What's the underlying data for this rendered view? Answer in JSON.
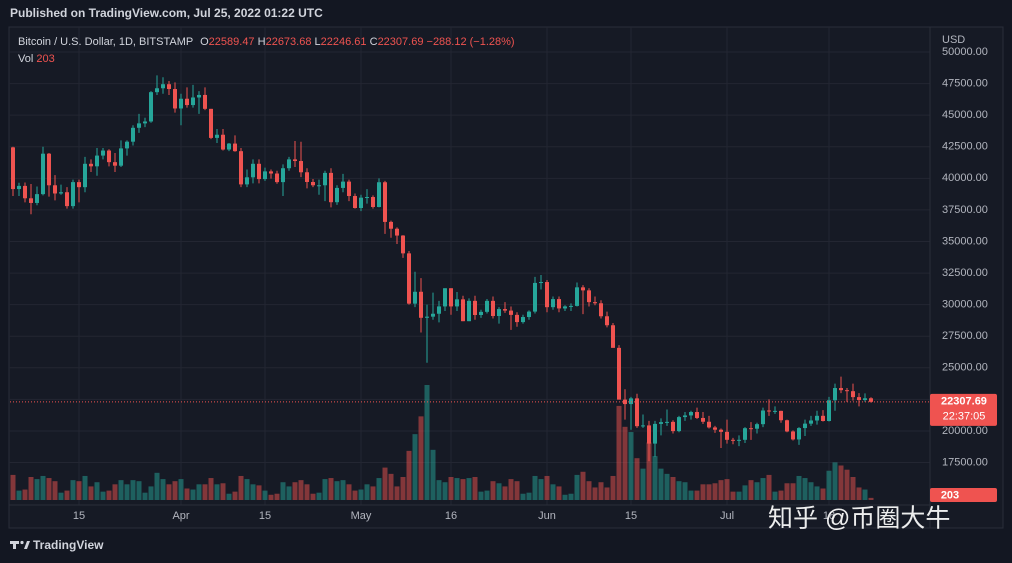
{
  "header": {
    "published": "Published on TradingView.com, Jul 25, 2022 01:22 UTC",
    "brand": "TradingView",
    "watermark": "知乎 @币圈大牛"
  },
  "chart_data": {
    "type": "candlestick",
    "symbol": "Bitcoin / U.S. Dollar, 1D, BITSTAMP",
    "legend_labels": [
      "O",
      "H",
      "L",
      "C"
    ],
    "change": "−288.12 (−1.28%)",
    "volume_label": "Vol",
    "currency": "USD",
    "countdown": "22:37:05",
    "up_color": "#26a69a",
    "down_color": "#ef5350",
    "grid": true,
    "x": [
      "2022-03-04",
      "2022-03-05",
      "2022-03-06",
      "2022-03-07",
      "2022-03-08",
      "2022-03-09",
      "2022-03-10",
      "2022-03-11",
      "2022-03-12",
      "2022-03-13",
      "2022-03-14",
      "2022-03-15",
      "2022-03-16",
      "2022-03-17",
      "2022-03-18",
      "2022-03-19",
      "2022-03-20",
      "2022-03-21",
      "2022-03-22",
      "2022-03-23",
      "2022-03-24",
      "2022-03-25",
      "2022-03-26",
      "2022-03-27",
      "2022-03-28",
      "2022-03-29",
      "2022-03-30",
      "2022-03-31",
      "2022-04-01",
      "2022-04-02",
      "2022-04-03",
      "2022-04-04",
      "2022-04-05",
      "2022-04-06",
      "2022-04-07",
      "2022-04-08",
      "2022-04-09",
      "2022-04-10",
      "2022-04-11",
      "2022-04-12",
      "2022-04-13",
      "2022-04-14",
      "2022-04-15",
      "2022-04-16",
      "2022-04-17",
      "2022-04-18",
      "2022-04-19",
      "2022-04-20",
      "2022-04-21",
      "2022-04-22",
      "2022-04-23",
      "2022-04-24",
      "2022-04-25",
      "2022-04-26",
      "2022-04-27",
      "2022-04-28",
      "2022-04-29",
      "2022-04-30",
      "2022-05-01",
      "2022-05-02",
      "2022-05-03",
      "2022-05-04",
      "2022-05-05",
      "2022-05-06",
      "2022-05-07",
      "2022-05-08",
      "2022-05-09",
      "2022-05-10",
      "2022-05-11",
      "2022-05-12",
      "2022-05-13",
      "2022-05-14",
      "2022-05-15",
      "2022-05-16",
      "2022-05-17",
      "2022-05-18",
      "2022-05-19",
      "2022-05-20",
      "2022-05-21",
      "2022-05-22",
      "2022-05-23",
      "2022-05-24",
      "2022-05-25",
      "2022-05-26",
      "2022-05-27",
      "2022-05-28",
      "2022-05-29",
      "2022-05-30",
      "2022-05-31",
      "2022-06-01",
      "2022-06-02",
      "2022-06-03",
      "2022-06-04",
      "2022-06-05",
      "2022-06-06",
      "2022-06-07",
      "2022-06-08",
      "2022-06-09",
      "2022-06-10",
      "2022-06-11",
      "2022-06-12",
      "2022-06-13",
      "2022-06-14",
      "2022-06-15",
      "2022-06-16",
      "2022-06-17",
      "2022-06-18",
      "2022-06-19",
      "2022-06-20",
      "2022-06-21",
      "2022-06-22",
      "2022-06-23",
      "2022-06-24",
      "2022-06-25",
      "2022-06-26",
      "2022-06-27",
      "2022-06-28",
      "2022-06-29",
      "2022-06-30",
      "2022-07-01",
      "2022-07-02",
      "2022-07-03",
      "2022-07-04",
      "2022-07-05",
      "2022-07-06",
      "2022-07-07",
      "2022-07-08",
      "2022-07-09",
      "2022-07-10",
      "2022-07-11",
      "2022-07-12",
      "2022-07-13",
      "2022-07-14",
      "2022-07-15",
      "2022-07-16",
      "2022-07-17",
      "2022-07-18",
      "2022-07-19",
      "2022-07-20",
      "2022-07-21",
      "2022-07-22",
      "2022-07-23",
      "2022-07-24",
      "2022-07-25"
    ],
    "candles": [
      [
        42450,
        42500,
        38600,
        39150
      ],
      [
        39150,
        39650,
        38600,
        39400
      ],
      [
        39400,
        39670,
        38100,
        38420
      ],
      [
        38420,
        39550,
        37160,
        38050
      ],
      [
        38050,
        39350,
        37870,
        38750
      ],
      [
        38750,
        42500,
        38650,
        41950
      ],
      [
        41950,
        42000,
        38550,
        39450
      ],
      [
        39450,
        40250,
        38250,
        38800
      ],
      [
        38800,
        39500,
        38700,
        38900
      ],
      [
        38900,
        39300,
        37600,
        37800
      ],
      [
        37800,
        39900,
        37600,
        39700
      ],
      [
        39700,
        39900,
        38100,
        39300
      ],
      [
        39300,
        41700,
        38900,
        41150
      ],
      [
        41150,
        41500,
        40500,
        40950
      ],
      [
        40950,
        42400,
        40200,
        41800
      ],
      [
        41800,
        42400,
        41500,
        42200
      ],
      [
        42200,
        42300,
        40950,
        41280
      ],
      [
        41280,
        42000,
        40500,
        41000
      ],
      [
        41000,
        43000,
        40900,
        42370
      ],
      [
        42370,
        43000,
        41800,
        42900
      ],
      [
        42900,
        44200,
        42600,
        44000
      ],
      [
        44000,
        45100,
        43600,
        44350
      ],
      [
        44350,
        44800,
        44050,
        44500
      ],
      [
        44500,
        46900,
        44400,
        46820
      ],
      [
        46820,
        48150,
        46600,
        47130
      ],
      [
        47130,
        48000,
        46700,
        47450
      ],
      [
        47450,
        47700,
        46600,
        47070
      ],
      [
        47070,
        47600,
        45200,
        45530
      ],
      [
        45530,
        46700,
        44200,
        46300
      ],
      [
        46300,
        47200,
        45600,
        45800
      ],
      [
        45800,
        47400,
        45600,
        46400
      ],
      [
        46400,
        46900,
        45100,
        46600
      ],
      [
        46600,
        47200,
        45400,
        45500
      ],
      [
        45500,
        45500,
        43100,
        43200
      ],
      [
        43200,
        43900,
        42800,
        43450
      ],
      [
        43450,
        43900,
        42200,
        42280
      ],
      [
        42280,
        42800,
        42150,
        42750
      ],
      [
        42750,
        43400,
        42100,
        42150
      ],
      [
        42150,
        42400,
        39300,
        39520
      ],
      [
        39520,
        40700,
        39300,
        40080
      ],
      [
        40080,
        41500,
        39600,
        41150
      ],
      [
        41150,
        41500,
        39600,
        39940
      ],
      [
        39940,
        40850,
        39800,
        40550
      ],
      [
        40550,
        40700,
        39980,
        40380
      ],
      [
        40380,
        40600,
        39570,
        39700
      ],
      [
        39700,
        41100,
        38600,
        40800
      ],
      [
        40800,
        41700,
        40600,
        41500
      ],
      [
        41500,
        42950,
        40900,
        41370
      ],
      [
        41370,
        42900,
        40100,
        40480
      ],
      [
        40480,
        40800,
        39200,
        39710
      ],
      [
        39710,
        39950,
        39300,
        39450
      ],
      [
        39450,
        39900,
        38700,
        39450
      ],
      [
        39450,
        40600,
        38200,
        40430
      ],
      [
        40430,
        40800,
        37700,
        38110
      ],
      [
        38110,
        39450,
        37900,
        39240
      ],
      [
        39240,
        40350,
        38900,
        39740
      ],
      [
        39740,
        39900,
        38200,
        38600
      ],
      [
        38600,
        38800,
        37600,
        37650
      ],
      [
        37650,
        38700,
        37400,
        38470
      ],
      [
        38470,
        39150,
        38000,
        38520
      ],
      [
        38520,
        38650,
        37600,
        37730
      ],
      [
        37730,
        40000,
        37700,
        39690
      ],
      [
        39690,
        39800,
        35600,
        36550
      ],
      [
        36550,
        36650,
        35300,
        36010
      ],
      [
        36010,
        36120,
        34800,
        35470
      ],
      [
        35470,
        35500,
        33700,
        34060
      ],
      [
        34060,
        34250,
        30000,
        30080
      ],
      [
        30080,
        32600,
        29800,
        31020
      ],
      [
        31020,
        32100,
        27800,
        28960
      ],
      [
        28960,
        30000,
        25400,
        29050
      ],
      [
        29050,
        30950,
        28800,
        29280
      ],
      [
        29280,
        30300,
        28600,
        29860
      ],
      [
        29860,
        31300,
        29500,
        31300
      ],
      [
        31300,
        31300,
        29200,
        29860
      ],
      [
        29860,
        31000,
        29500,
        30420
      ],
      [
        30420,
        30700,
        28700,
        28690
      ],
      [
        28690,
        30500,
        28700,
        30300
      ],
      [
        30300,
        30700,
        28800,
        29180
      ],
      [
        29180,
        29600,
        28950,
        29430
      ],
      [
        29430,
        30450,
        29300,
        30300
      ],
      [
        30300,
        30650,
        28900,
        29100
      ],
      [
        29100,
        29800,
        28500,
        29650
      ],
      [
        29650,
        30200,
        29350,
        29530
      ],
      [
        29530,
        29850,
        28000,
        29190
      ],
      [
        29190,
        29400,
        28250,
        28620
      ],
      [
        28620,
        29200,
        28500,
        29020
      ],
      [
        29020,
        29550,
        28800,
        29450
      ],
      [
        29450,
        32200,
        29300,
        31720
      ],
      [
        31720,
        32350,
        31200,
        31790
      ],
      [
        31790,
        31950,
        29400,
        29800
      ],
      [
        29800,
        30650,
        29600,
        30440
      ],
      [
        30440,
        30650,
        29400,
        29700
      ],
      [
        29700,
        29950,
        29500,
        29860
      ],
      [
        29860,
        30100,
        29500,
        29900
      ],
      [
        29900,
        31750,
        29850,
        31370
      ],
      [
        31370,
        31550,
        29250,
        31130
      ],
      [
        31130,
        31300,
        29850,
        30200
      ],
      [
        30200,
        30650,
        29950,
        30110
      ],
      [
        30110,
        30350,
        28900,
        29080
      ],
      [
        29080,
        29450,
        28200,
        28370
      ],
      [
        28370,
        28550,
        26600,
        26580
      ],
      [
        26580,
        26800,
        22600,
        22480
      ],
      [
        22480,
        23300,
        20900,
        22130
      ],
      [
        22130,
        22700,
        20100,
        22580
      ],
      [
        22580,
        22950,
        20250,
        20380
      ],
      [
        20380,
        21300,
        20250,
        20440
      ],
      [
        20440,
        20800,
        17600,
        19000
      ],
      [
        19000,
        20800,
        17950,
        20560
      ],
      [
        20560,
        21000,
        19650,
        20700
      ],
      [
        20700,
        21700,
        20400,
        20720
      ],
      [
        20720,
        20850,
        19800,
        19990
      ],
      [
        19990,
        21200,
        19900,
        21100
      ],
      [
        21100,
        21500,
        20800,
        21230
      ],
      [
        21230,
        21600,
        20900,
        21500
      ],
      [
        21500,
        21850,
        20950,
        21030
      ],
      [
        21030,
        21500,
        20550,
        20730
      ],
      [
        20730,
        21200,
        20200,
        20280
      ],
      [
        20280,
        20400,
        19850,
        20100
      ],
      [
        20100,
        20200,
        18650,
        19930
      ],
      [
        19930,
        20900,
        19000,
        19300
      ],
      [
        19300,
        19450,
        18950,
        19240
      ],
      [
        19240,
        19650,
        18800,
        19300
      ],
      [
        19300,
        20300,
        19050,
        20220
      ],
      [
        20220,
        20700,
        19300,
        20180
      ],
      [
        20180,
        20650,
        19800,
        20540
      ],
      [
        20540,
        21850,
        20300,
        21620
      ],
      [
        21620,
        22500,
        21200,
        21590
      ],
      [
        21590,
        21950,
        21350,
        21590
      ],
      [
        21590,
        21600,
        20650,
        20850
      ],
      [
        20850,
        20900,
        19900,
        19960
      ],
      [
        19960,
        20050,
        19250,
        19330
      ],
      [
        19330,
        20300,
        18900,
        20230
      ],
      [
        20230,
        20900,
        19600,
        20580
      ],
      [
        20580,
        21200,
        20400,
        20830
      ],
      [
        20830,
        21600,
        20500,
        21200
      ],
      [
        21200,
        21650,
        20750,
        20790
      ],
      [
        20790,
        22700,
        20750,
        22430
      ],
      [
        22430,
        23750,
        21600,
        23400
      ],
      [
        23400,
        24300,
        23000,
        23230
      ],
      [
        23230,
        23400,
        22300,
        23150
      ],
      [
        23150,
        23750,
        22400,
        22680
      ],
      [
        22680,
        23000,
        21950,
        22450
      ],
      [
        22450,
        22980,
        22300,
        22590
      ],
      [
        22589.47,
        22673.68,
        22246.61,
        22307.69
      ]
    ],
    "volume": [
      2400,
      900,
      1000,
      2200,
      2000,
      2300,
      2100,
      1800,
      700,
      900,
      1900,
      1800,
      2300,
      1300,
      1700,
      800,
      900,
      1500,
      1900,
      1500,
      1900,
      1800,
      700,
      1300,
      2600,
      2000,
      1500,
      1800,
      2000,
      1100,
      1000,
      1500,
      1500,
      2100,
      1500,
      1600,
      600,
      800,
      2300,
      2000,
      1500,
      1400,
      900,
      500,
      600,
      1700,
      1300,
      1700,
      1900,
      1500,
      600,
      700,
      2000,
      2100,
      1800,
      1900,
      1500,
      900,
      1000,
      1500,
      1300,
      2100,
      3100,
      2500,
      1300,
      2200,
      4700,
      6300,
      8000,
      11000,
      4800,
      1900,
      1700,
      2200,
      2100,
      2000,
      2100,
      2200,
      800,
      900,
      1800,
      1600,
      1300,
      2000,
      1800,
      600,
      700,
      2300,
      2000,
      2300,
      1500,
      1300,
      500,
      600,
      2400,
      2700,
      1800,
      1200,
      1700,
      1200,
      2300,
      9000,
      7000,
      6500,
      4000,
      3000,
      5500,
      4200,
      3000,
      2500,
      2200,
      1800,
      1700,
      900,
      900,
      1500,
      1500,
      1600,
      1900,
      2000,
      800,
      800,
      1400,
      1900,
      1700,
      2100,
      2400,
      800,
      900,
      1600,
      1600,
      2300,
      2100,
      1700,
      1300,
      1100,
      2800,
      3600,
      3300,
      2900,
      2200,
      1200,
      1000,
      203
    ],
    "ylim": [
      14140,
      51900
    ],
    "yticks": [
      {
        "value": 17500,
        "label": "17500.00"
      },
      {
        "value": 20000,
        "label": "20000.00"
      },
      {
        "value": 22500,
        "label": "22500.00"
      },
      {
        "value": 25000,
        "label": "25000.00"
      },
      {
        "value": 27500,
        "label": "27500.00"
      },
      {
        "value": 30000,
        "label": "30000.00"
      },
      {
        "value": 32500,
        "label": "32500.00"
      },
      {
        "value": 35000,
        "label": "35000.00"
      },
      {
        "value": 37500,
        "label": "37500.00"
      },
      {
        "value": 40000,
        "label": "40000.00"
      },
      {
        "value": 42500,
        "label": "42500.00"
      },
      {
        "value": 45000,
        "label": "45000.00"
      },
      {
        "value": 47500,
        "label": "47500.00"
      },
      {
        "value": 50000,
        "label": "50000.00"
      }
    ],
    "xticks": [
      {
        "value": "2022-03-15",
        "label": "15"
      },
      {
        "value": "2022-04-01",
        "label": "Apr"
      },
      {
        "value": "2022-04-15",
        "label": "15"
      },
      {
        "value": "2022-05-01",
        "label": "May"
      },
      {
        "value": "2022-05-16",
        "label": "16"
      },
      {
        "value": "2022-06-01",
        "label": "Jun"
      },
      {
        "value": "2022-06-15",
        "label": "15"
      },
      {
        "value": "2022-07-01",
        "label": "Jul"
      },
      {
        "value": "2022-07-18",
        "label": "18"
      }
    ]
  }
}
